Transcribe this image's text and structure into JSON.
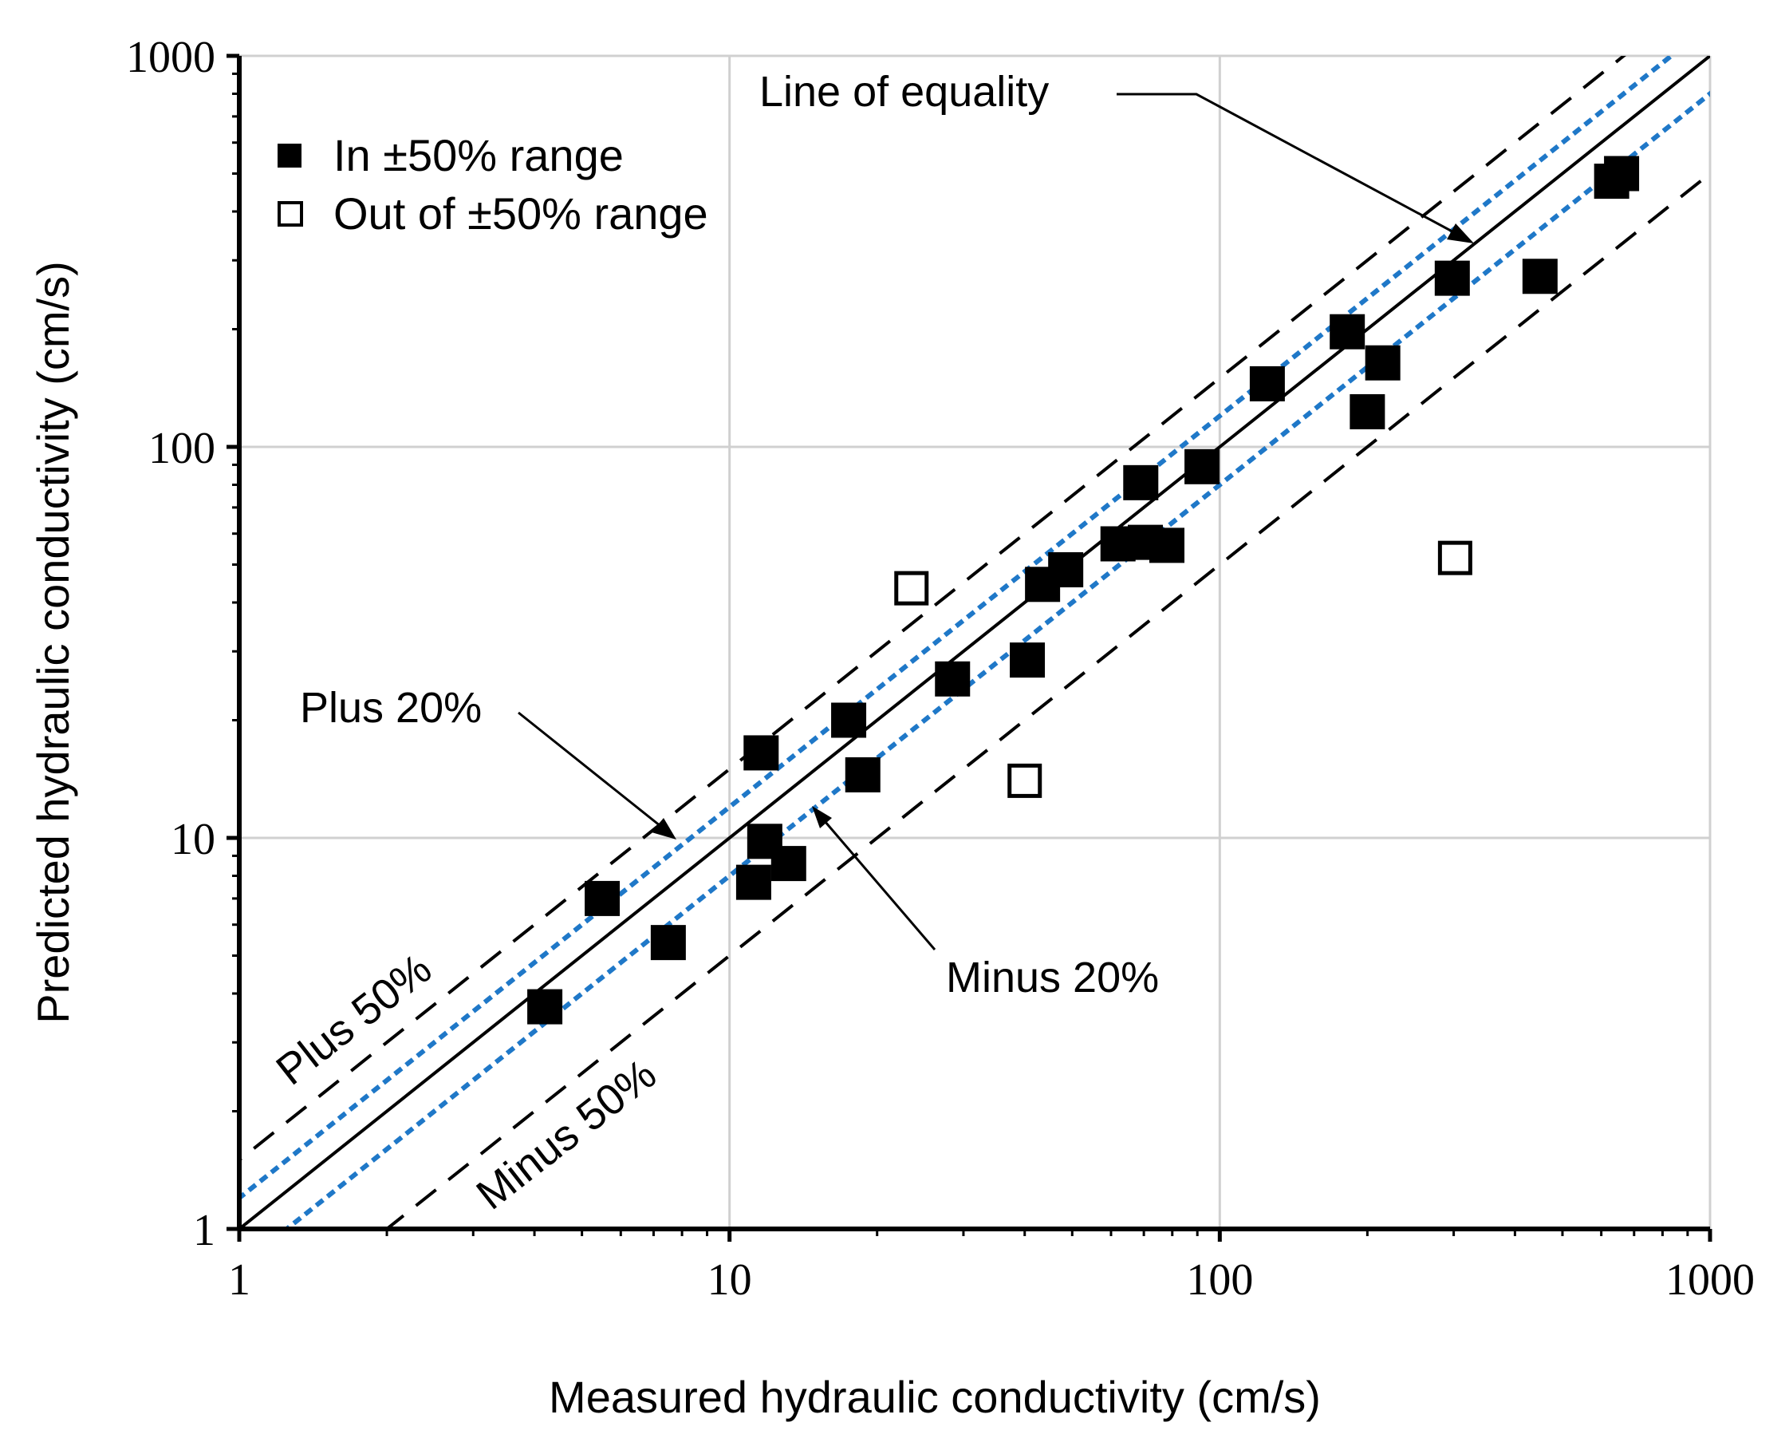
{
  "chart_data": {
    "type": "scatter",
    "title": "",
    "xlabel": "Measured hydraulic conductivity (cm/s)",
    "ylabel": "Predicted hydraulic conductivity (cm/s)",
    "xscale": "log",
    "yscale": "log",
    "xlim": [
      1,
      1000
    ],
    "ylim": [
      1,
      1000
    ],
    "xticks": [
      "1",
      "10",
      "100",
      "1000"
    ],
    "yticks": [
      "1",
      "10",
      "100",
      "1000"
    ],
    "grid": true,
    "legend_position": "top-left",
    "series": [
      {
        "name": "In ±50% range",
        "marker": "filled-square",
        "color": "#000000",
        "points": [
          [
            4.2,
            3.7
          ],
          [
            5.5,
            7.0
          ],
          [
            7.5,
            5.4
          ],
          [
            11.2,
            7.7
          ],
          [
            11.8,
            9.8
          ],
          [
            13.2,
            8.6
          ],
          [
            11.6,
            16.5
          ],
          [
            17.5,
            20.0
          ],
          [
            18.7,
            14.5
          ],
          [
            28.5,
            25.5
          ],
          [
            40.5,
            28.5
          ],
          [
            43.5,
            44.5
          ],
          [
            48.5,
            48.5
          ],
          [
            62.0,
            56.5
          ],
          [
            69.0,
            81.0
          ],
          [
            70.5,
            57.0
          ],
          [
            78.0,
            56.0
          ],
          [
            92.0,
            89.0
          ],
          [
            125.0,
            145.0
          ],
          [
            182.0,
            197.0
          ],
          [
            200.0,
            123.0
          ],
          [
            215.0,
            164.0
          ],
          [
            298.0,
            270.0
          ],
          [
            450.0,
            273.0
          ],
          [
            630.0,
            478.0
          ],
          [
            660.0,
            500.0
          ]
        ]
      },
      {
        "name": "Out of ±50% range",
        "marker": "open-square",
        "color": "#000000",
        "points": [
          [
            23.5,
            43.5
          ],
          [
            40.0,
            14.0
          ],
          [
            302.0,
            52.0
          ]
        ]
      }
    ],
    "reference_lines": [
      {
        "name": "Line of equality",
        "factor": 1.0,
        "style": "solid",
        "color": "#000000"
      },
      {
        "name": "Plus 20%",
        "factor": 1.2,
        "style": "dotted",
        "color": "#1f78c8"
      },
      {
        "name": "Minus 20%",
        "factor": 0.8,
        "style": "dotted",
        "color": "#1f78c8"
      },
      {
        "name": "Plus 50%",
        "factor": 1.5,
        "style": "dashed",
        "color": "#000000"
      },
      {
        "name": "Minus 50%",
        "factor": 0.5,
        "style": "dashed",
        "color": "#000000"
      }
    ],
    "annotations": {
      "line_of_equality": "Line of equality",
      "plus_20": "Plus 20%",
      "minus_20": "Minus 20%",
      "plus_50": "Plus 50%",
      "minus_50": "Minus 50%"
    },
    "legend": {
      "in_range": "In ±50% range",
      "out_range": "Out of ±50% range"
    }
  }
}
